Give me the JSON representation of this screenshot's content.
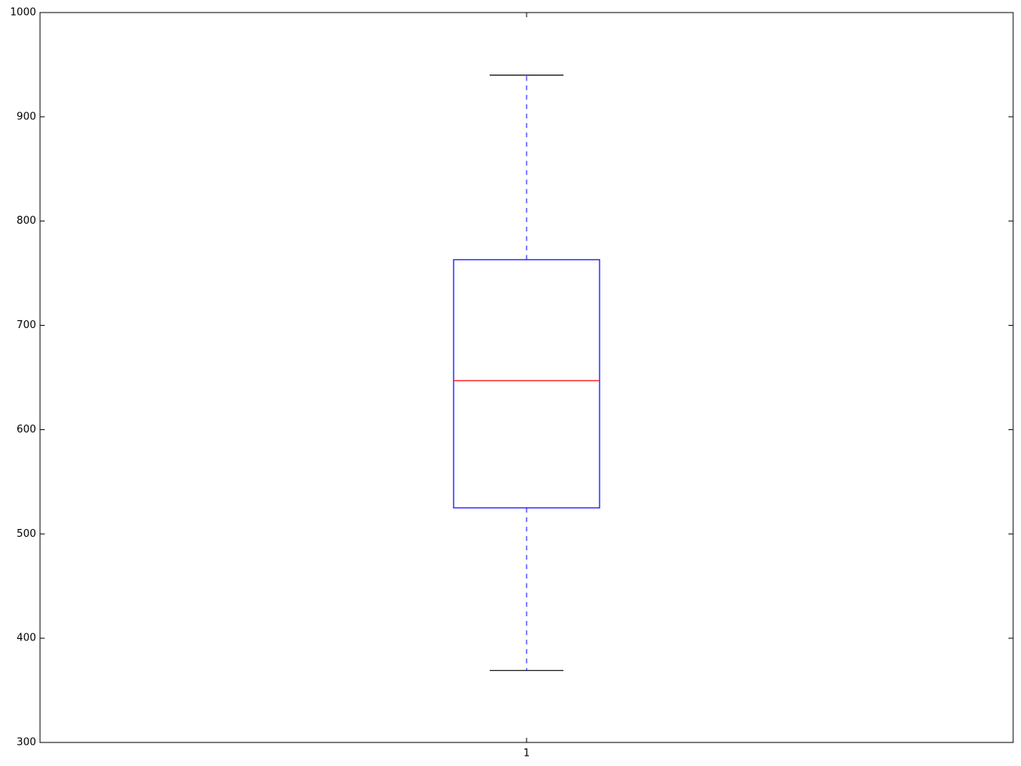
{
  "chart_data": {
    "type": "box",
    "title": "",
    "xlabel": "",
    "ylabel": "",
    "categories": [
      "1"
    ],
    "boxes": [
      {
        "category": "1",
        "whisker_low": 369,
        "q1": 525,
        "median": 647,
        "q3": 763,
        "whisker_high": 940
      }
    ],
    "ylim": [
      300,
      1000
    ],
    "yticks": [
      300,
      400,
      500,
      600,
      700,
      800,
      900,
      1000
    ],
    "grid": false,
    "colors": {
      "box": "#0000ff",
      "median": "#ff0000",
      "whisker": "#0000ff",
      "cap": "#000000",
      "axes": "#000000"
    }
  }
}
